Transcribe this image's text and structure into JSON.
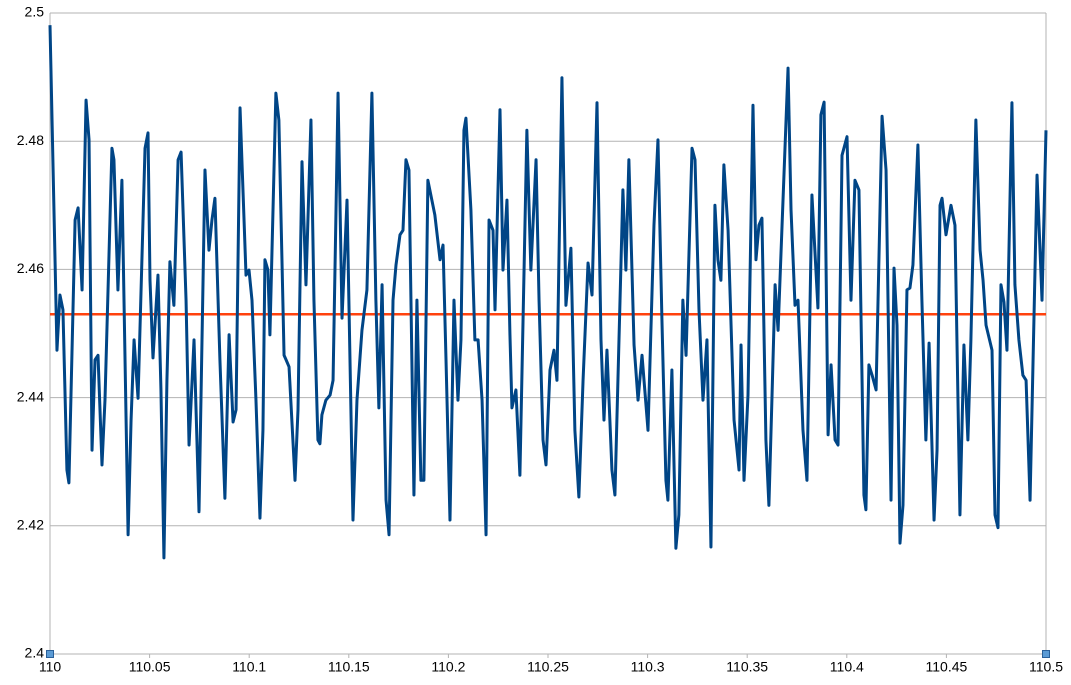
{
  "chart_data": {
    "type": "line",
    "x": [
      110,
      110.0035,
      110.005,
      110.0065,
      110.0085,
      110.0095,
      110.0126,
      110.0141,
      110.0161,
      110.0181,
      110.0196,
      110.0211,
      110.0226,
      110.0241,
      110.0261,
      110.0276,
      110.0311,
      110.0321,
      110.0341,
      110.0361,
      110.0392,
      110.0407,
      110.0422,
      110.0442,
      110.0477,
      110.0492,
      110.0502,
      110.0517,
      110.0542,
      110.0557,
      110.0572,
      110.0587,
      110.0602,
      110.0622,
      110.0643,
      110.0658,
      110.0683,
      110.0698,
      110.0723,
      110.0748,
      110.0778,
      110.0798,
      110.0813,
      110.0828,
      110.0853,
      110.0878,
      110.0899,
      110.0919,
      110.0934,
      110.0954,
      110.0984,
      110.0999,
      110.1014,
      110.1034,
      110.1054,
      110.1069,
      110.1079,
      110.1094,
      110.1104,
      110.1134,
      110.1149,
      110.1175,
      110.1185,
      110.12,
      110.123,
      110.1245,
      110.1265,
      110.1285,
      110.131,
      110.1325,
      110.1345,
      110.1355,
      110.1365,
      110.1385,
      110.1406,
      110.1421,
      110.1446,
      110.1466,
      110.1491,
      110.1521,
      110.1541,
      110.1566,
      110.1591,
      110.1616,
      110.1636,
      110.1651,
      110.1667,
      110.1687,
      110.1702,
      110.1722,
      110.1737,
      110.1757,
      110.1772,
      110.1787,
      110.1802,
      110.1827,
      110.1842,
      110.1862,
      110.1877,
      110.1897,
      110.1932,
      110.1958,
      110.1973,
      110.1988,
      110.2008,
      110.2028,
      110.2048,
      110.2063,
      110.2078,
      110.2088,
      110.2113,
      110.2133,
      110.2149,
      110.2169,
      110.2189,
      110.2204,
      110.2224,
      110.2234,
      110.2259,
      110.2274,
      110.2294,
      110.2309,
      110.2319,
      110.2339,
      110.2359,
      110.2394,
      110.2414,
      110.244,
      110.2455,
      110.2475,
      110.249,
      110.251,
      110.253,
      110.2545,
      110.257,
      110.259,
      110.2615,
      110.2635,
      110.2655,
      110.2676,
      110.2701,
      110.2721,
      110.2746,
      110.2766,
      110.2781,
      110.2796,
      110.2821,
      110.2836,
      110.2876,
      110.2891,
      110.2906,
      110.2932,
      110.2952,
      110.2972,
      110.3002,
      110.3032,
      110.3052,
      110.3072,
      110.3092,
      110.3102,
      110.3122,
      110.3142,
      110.3157,
      110.3177,
      110.3193,
      110.3223,
      110.3238,
      110.3258,
      110.3278,
      110.3298,
      110.3318,
      110.3338,
      110.3353,
      110.3368,
      110.3383,
      110.3404,
      110.3434,
      110.3459,
      110.3469,
      110.3484,
      110.3504,
      110.3529,
      110.3544,
      110.3559,
      110.3574,
      110.3594,
      110.3609,
      110.3624,
      110.364,
      110.3655,
      110.3675,
      110.3705,
      110.372,
      110.374,
      110.3755,
      110.378,
      110.38,
      110.3825,
      110.3855,
      110.387,
      110.3886,
      110.3906,
      110.3921,
      110.3941,
      110.3956,
      110.3976,
      110.4001,
      110.4021,
      110.4041,
      110.4061,
      110.4086,
      110.4096,
      110.4111,
      110.4127,
      110.4147,
      110.4177,
      110.4197,
      110.4222,
      110.4237,
      110.4252,
      110.4267,
      110.4282,
      110.4302,
      110.4317,
      110.4332,
      110.4357,
      110.4377,
      110.4397,
      110.4413,
      110.4438,
      110.4453,
      110.4468,
      110.4478,
      110.4498,
      110.4523,
      110.4543,
      110.4568,
      110.4588,
      110.4608,
      110.4623,
      110.4648,
      110.4669,
      110.4684,
      110.4699,
      110.4729,
      110.4744,
      110.4759,
      110.4774,
      110.4789,
      110.4804,
      110.4829,
      110.4844,
      110.4864,
      110.4884,
      110.49,
      110.492,
      110.4955,
      110.498,
      110.5
    ],
    "series": [
      {
        "color": "#004586",
        "values": [
          2.4981,
          2.4474,
          2.456,
          2.4537,
          2.4287,
          2.4267,
          2.4677,
          2.4696,
          2.4568,
          2.4864,
          2.4802,
          2.4318,
          2.4459,
          2.4466,
          2.4295,
          2.4396,
          2.4789,
          2.4771,
          2.4568,
          2.4739,
          2.4186,
          2.4365,
          2.449,
          2.4399,
          2.4789,
          2.4813,
          2.4583,
          2.4462,
          2.4591,
          2.4412,
          2.415,
          2.4427,
          2.4612,
          2.4544,
          2.4771,
          2.4783,
          2.4552,
          2.4326,
          2.449,
          2.4222,
          2.4755,
          2.463,
          2.4677,
          2.4711,
          2.4459,
          2.4243,
          2.4498,
          2.4362,
          2.4381,
          2.4852,
          2.4591,
          2.4599,
          2.4552,
          2.4396,
          2.4212,
          2.4349,
          2.4615,
          2.4599,
          2.4498,
          2.4875,
          2.4833,
          2.4466,
          2.4459,
          2.4448,
          2.4271,
          2.4381,
          2.4768,
          2.4576,
          2.4833,
          2.4552,
          2.4334,
          2.4328,
          2.4373,
          2.4396,
          2.4404,
          2.4427,
          2.4875,
          2.4524,
          2.4708,
          2.4209,
          2.4396,
          2.4505,
          2.4568,
          2.4875,
          2.4552,
          2.4384,
          2.4576,
          2.424,
          2.4186,
          2.4552,
          2.4607,
          2.4654,
          2.4661,
          2.4771,
          2.4755,
          2.4248,
          2.4552,
          2.4271,
          2.4271,
          2.4739,
          2.4685,
          2.4615,
          2.4638,
          2.4459,
          2.4209,
          2.4552,
          2.4396,
          2.449,
          2.4817,
          2.4836,
          2.4693,
          2.449,
          2.449,
          2.4396,
          2.4186,
          2.4677,
          2.4661,
          2.4537,
          2.4849,
          2.4599,
          2.4708,
          2.4498,
          2.4384,
          2.4412,
          2.4279,
          2.4817,
          2.4599,
          2.4771,
          2.4552,
          2.4334,
          2.4295,
          2.4443,
          2.4474,
          2.4427,
          2.4899,
          2.4544,
          2.4633,
          2.4349,
          2.4245,
          2.4427,
          2.461,
          2.456,
          2.486,
          2.449,
          2.4365,
          2.4474,
          2.4287,
          2.4248,
          2.4724,
          2.4599,
          2.4771,
          2.4482,
          2.4396,
          2.4466,
          2.4349,
          2.4669,
          2.4802,
          2.4521,
          2.4271,
          2.424,
          2.4443,
          2.4165,
          2.4217,
          2.4552,
          2.4466,
          2.4789,
          2.4771,
          2.4537,
          2.4396,
          2.449,
          2.4167,
          2.47,
          2.4615,
          2.4583,
          2.4763,
          2.4661,
          2.4365,
          2.4287,
          2.4482,
          2.4271,
          2.4404,
          2.4856,
          2.4615,
          2.4669,
          2.468,
          2.4334,
          2.4232,
          2.4396,
          2.4576,
          2.4505,
          2.4669,
          2.4914,
          2.4693,
          2.4544,
          2.4552,
          2.4349,
          2.4271,
          2.4716,
          2.454,
          2.4841,
          2.4861,
          2.4342,
          2.4451,
          2.4334,
          2.4326,
          2.4778,
          2.4807,
          2.4552,
          2.4739,
          2.4724,
          2.4248,
          2.4225,
          2.4451,
          2.4435,
          2.4412,
          2.4839,
          2.4755,
          2.424,
          2.4602,
          2.4513,
          2.4173,
          2.4232,
          2.4568,
          2.4571,
          2.4607,
          2.4794,
          2.4552,
          2.4334,
          2.4485,
          2.4209,
          2.4318,
          2.47,
          2.4711,
          2.4654,
          2.47,
          2.4669,
          2.4217,
          2.4482,
          2.4334,
          2.449,
          2.4833,
          2.463,
          2.4583,
          2.4513,
          2.4474,
          2.4217,
          2.4197,
          2.4576,
          2.4549,
          2.4474,
          2.486,
          2.4576,
          2.449,
          2.4435,
          2.4427,
          2.424,
          2.4747,
          2.4552,
          2.4817
        ]
      }
    ],
    "hline": {
      "value": 2.453,
      "color": "#ff420e"
    },
    "xlim": [
      110,
      110.5
    ],
    "xticks": [
      110,
      110.05,
      110.1,
      110.15,
      110.2,
      110.25,
      110.3,
      110.35,
      110.4,
      110.45,
      110.5
    ],
    "ylim": [
      2.4,
      2.5
    ],
    "yticks": [
      2.4,
      2.42,
      2.44,
      2.46,
      2.48,
      2.5
    ],
    "grid": true
  }
}
